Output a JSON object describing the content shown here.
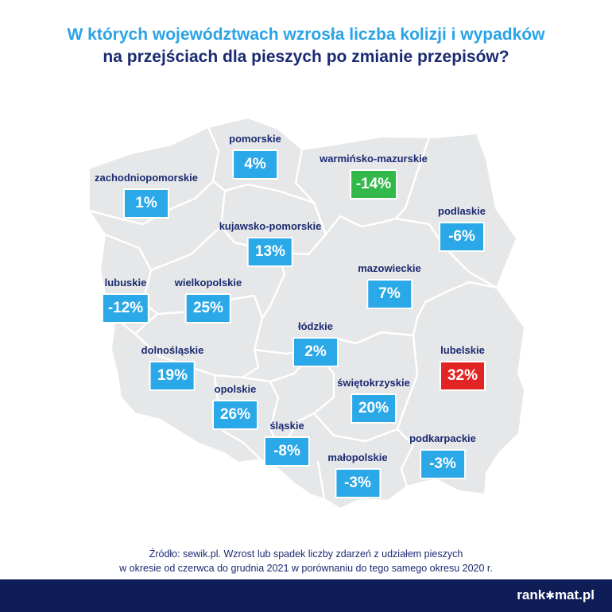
{
  "title_line1": "W których województwach wzrosła liczba kolizji i wypadków",
  "title_line2": "na przejściach dla pieszych po zmianie przepisów?",
  "regions": [
    {
      "name": "pomorskie",
      "value": "4%"
    },
    {
      "name": "warmińsko-mazurskie",
      "value": "-14%"
    },
    {
      "name": "zachodniopomorskie",
      "value": "1%"
    },
    {
      "name": "podlaskie",
      "value": "-6%"
    },
    {
      "name": "kujawsko-pomorskie",
      "value": "13%"
    },
    {
      "name": "mazowieckie",
      "value": "7%"
    },
    {
      "name": "lubuskie",
      "value": "-12%"
    },
    {
      "name": "wielkopolskie",
      "value": "25%"
    },
    {
      "name": "łódzkie",
      "value": "2%"
    },
    {
      "name": "dolnośląskie",
      "value": "19%"
    },
    {
      "name": "lubelskie",
      "value": "32%"
    },
    {
      "name": "opolskie",
      "value": "26%"
    },
    {
      "name": "świętokrzyskie",
      "value": "20%"
    },
    {
      "name": "śląskie",
      "value": "-8%"
    },
    {
      "name": "podkarpackie",
      "value": "-3%"
    },
    {
      "name": "małopolskie",
      "value": "-3%"
    }
  ],
  "source_line1": "Źródło: sewik.pl. Wzrost lub spadek liczby zdarzeń z udziałem pieszych",
  "source_line2": "w okresie od czerwca do grudnia 2021 w porównaniu do tego samego okresu 2020 r.",
  "logo_part1": "rank",
  "logo_star": "✱",
  "logo_part2": "mat.pl",
  "colors": {
    "map_fill": "#e6e7e8",
    "border": "#ffffff",
    "value_box": "#2aa8e8",
    "increase_min": "#33b84a",
    "increase_max": "#e32424",
    "title_accent": "#2aa3e6",
    "navy": "#1b2a72",
    "footer": "#0f1d56"
  }
}
